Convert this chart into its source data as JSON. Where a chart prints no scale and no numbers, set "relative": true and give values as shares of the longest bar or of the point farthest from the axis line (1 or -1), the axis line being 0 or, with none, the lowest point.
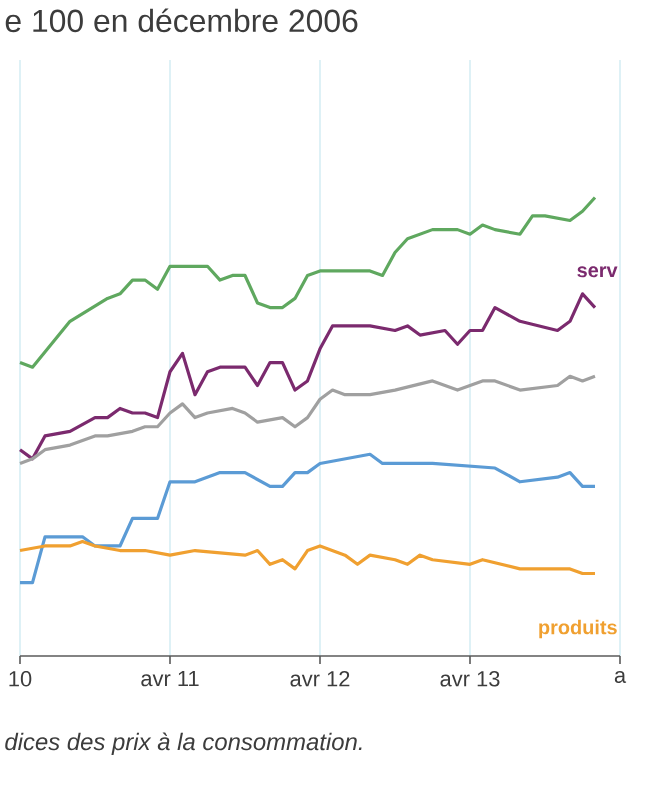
{
  "chart_data": {
    "type": "line",
    "title": "e 100 en décembre 2006",
    "relative": true,
    "grid": true,
    "xlim": [
      "2010-04",
      "2014-04"
    ],
    "xticks": [
      {
        "value": "2010-04",
        "label": "10"
      },
      {
        "value": "2011-04",
        "label": "avr 11"
      },
      {
        "value": "2012-04",
        "label": "avr 12"
      },
      {
        "value": "2013-04",
        "label": "avr 13"
      },
      {
        "value": "2014-04",
        "label": "a"
      }
    ],
    "annotations": [
      "dices des prix à la consommation."
    ],
    "series": [
      {
        "color": "#5fa85f",
        "x": [
          "2010-04",
          "2010-05",
          "2010-08",
          "2010-11",
          "2010-12",
          "2011-01",
          "2011-02",
          "2011-03",
          "2011-04",
          "2011-06",
          "2011-07",
          "2011-08",
          "2011-09",
          "2011-10",
          "2011-11",
          "2011-12",
          "2012-01",
          "2012-02",
          "2012-03",
          "2012-04",
          "2012-06",
          "2012-08",
          "2012-09",
          "2012-10",
          "2012-11",
          "2013-01",
          "2013-03",
          "2013-04",
          "2013-05",
          "2013-06",
          "2013-08",
          "2013-09",
          "2013-10",
          "2013-12",
          "2014-01",
          "2014-02"
        ],
        "values": [
          0.64,
          0.63,
          0.73,
          0.78,
          0.79,
          0.82,
          0.82,
          0.8,
          0.85,
          0.85,
          0.85,
          0.82,
          0.83,
          0.83,
          0.77,
          0.76,
          0.76,
          0.78,
          0.83,
          0.84,
          0.84,
          0.84,
          0.83,
          0.88,
          0.91,
          0.93,
          0.93,
          0.92,
          0.94,
          0.93,
          0.92,
          0.96,
          0.96,
          0.95,
          0.97,
          1
        ]
      },
      {
        "name": "serv",
        "color": "#7b2a6e",
        "x": [
          "2010-04",
          "2010-05",
          "2010-06",
          "2010-08",
          "2010-10",
          "2010-11",
          "2010-12",
          "2011-01",
          "2011-02",
          "2011-03",
          "2011-04",
          "2011-05",
          "2011-06",
          "2011-07",
          "2011-08",
          "2011-10",
          "2011-11",
          "2011-12",
          "2012-01",
          "2012-02",
          "2012-03",
          "2012-04",
          "2012-05",
          "2012-08",
          "2012-10",
          "2012-11",
          "2012-12",
          "2013-02",
          "2013-03",
          "2013-04",
          "2013-05",
          "2013-06",
          "2013-08",
          "2013-11",
          "2013-12",
          "2014-01",
          "2014-02"
        ],
        "values": [
          0.45,
          0.43,
          0.48,
          0.49,
          0.52,
          0.52,
          0.54,
          0.53,
          0.53,
          0.52,
          0.62,
          0.66,
          0.57,
          0.62,
          0.63,
          0.63,
          0.59,
          0.64,
          0.64,
          0.58,
          0.6,
          0.67,
          0.72,
          0.72,
          0.71,
          0.72,
          0.7,
          0.71,
          0.68,
          0.71,
          0.71,
          0.76,
          0.73,
          0.71,
          0.73,
          0.79,
          0.76
        ]
      },
      {
        "color": "#a0a0a0",
        "x": [
          "2010-04",
          "2010-05",
          "2010-06",
          "2010-08",
          "2010-10",
          "2010-11",
          "2011-01",
          "2011-02",
          "2011-03",
          "2011-04",
          "2011-05",
          "2011-06",
          "2011-07",
          "2011-09",
          "2011-10",
          "2011-11",
          "2012-01",
          "2012-02",
          "2012-03",
          "2012-04",
          "2012-05",
          "2012-06",
          "2012-08",
          "2012-10",
          "2013-01",
          "2013-03",
          "2013-05",
          "2013-06",
          "2013-08",
          "2013-11",
          "2013-12",
          "2014-01",
          "2014-02"
        ],
        "values": [
          0.42,
          0.43,
          0.45,
          0.46,
          0.48,
          0.48,
          0.49,
          0.5,
          0.5,
          0.53,
          0.55,
          0.52,
          0.53,
          0.54,
          0.53,
          0.51,
          0.52,
          0.5,
          0.52,
          0.56,
          0.58,
          0.57,
          0.57,
          0.58,
          0.6,
          0.58,
          0.6,
          0.6,
          0.58,
          0.59,
          0.61,
          0.6,
          0.61
        ]
      },
      {
        "color": "#5b9bd5",
        "x": [
          "2010-04",
          "2010-05",
          "2010-06",
          "2010-09",
          "2010-10",
          "2010-12",
          "2011-01",
          "2011-03",
          "2011-04",
          "2011-06",
          "2011-08",
          "2011-10",
          "2011-12",
          "2012-01",
          "2012-02",
          "2012-03",
          "2012-04",
          "2012-06",
          "2012-08",
          "2012-09",
          "2012-12",
          "2013-01",
          "2013-06",
          "2013-08",
          "2013-11",
          "2013-12",
          "2014-01",
          "2014-02"
        ],
        "values": [
          0.16,
          0.16,
          0.26,
          0.26,
          0.24,
          0.24,
          0.3,
          0.3,
          0.38,
          0.38,
          0.4,
          0.4,
          0.37,
          0.37,
          0.4,
          0.4,
          0.42,
          0.43,
          0.44,
          0.42,
          0.42,
          0.42,
          0.41,
          0.38,
          0.39,
          0.4,
          0.37,
          0.37
        ]
      },
      {
        "name": "produits",
        "color": "#f0a030",
        "x": [
          "2010-04",
          "2010-06",
          "2010-08",
          "2010-09",
          "2010-10",
          "2010-12",
          "2011-02",
          "2011-04",
          "2011-06",
          "2011-10",
          "2011-11",
          "2011-12",
          "2012-01",
          "2012-02",
          "2012-03",
          "2012-04",
          "2012-06",
          "2012-07",
          "2012-08",
          "2012-10",
          "2012-11",
          "2012-12",
          "2013-01",
          "2013-04",
          "2013-05",
          "2013-08",
          "2013-10",
          "2013-12",
          "2014-01",
          "2014-02"
        ],
        "values": [
          0.23,
          0.24,
          0.24,
          0.25,
          0.24,
          0.23,
          0.23,
          0.22,
          0.23,
          0.22,
          0.23,
          0.2,
          0.21,
          0.19,
          0.23,
          0.24,
          0.22,
          0.2,
          0.22,
          0.21,
          0.2,
          0.22,
          0.21,
          0.2,
          0.21,
          0.19,
          0.19,
          0.19,
          0.18,
          0.18
        ]
      }
    ]
  }
}
